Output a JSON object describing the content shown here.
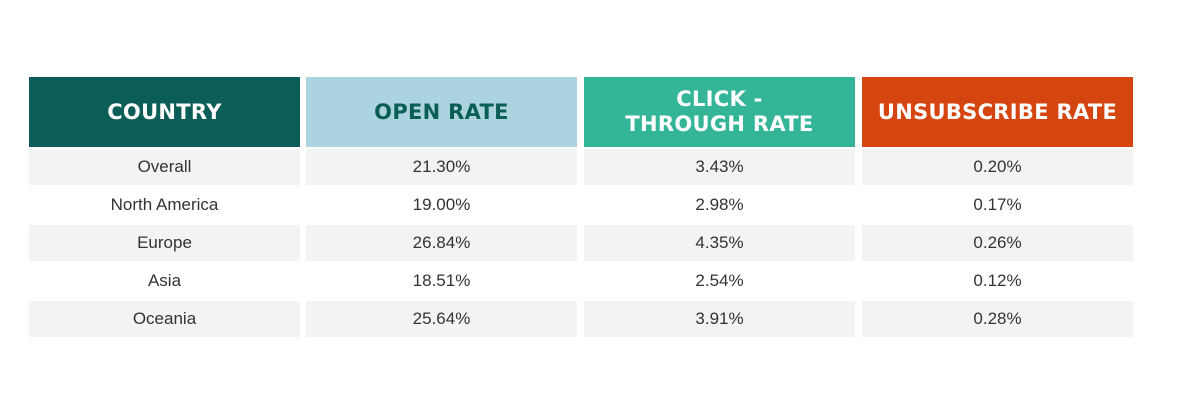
{
  "chart_data": {
    "type": "table",
    "columns": [
      {
        "label": "COUNTRY",
        "bg": "#0b5e57",
        "fg": "#ffffff"
      },
      {
        "label": "OPEN RATE",
        "bg": "#abd4e0",
        "fg": "#0b5e57"
      },
      {
        "label": "CLICK -\nTHROUGH RATE",
        "bg": "#34b597",
        "fg": "#ffffff"
      },
      {
        "label": "UNSUBSCRIBE RATE",
        "bg": "#d5450f",
        "fg": "#ffffff"
      }
    ],
    "rows": [
      [
        "Overall",
        "21.30%",
        "3.43%",
        "0.20%"
      ],
      [
        "North America",
        "19.00%",
        "2.98%",
        "0.17%"
      ],
      [
        "Europe",
        "26.84%",
        "4.35%",
        "0.26%"
      ],
      [
        "Asia",
        "18.51%",
        "2.54%",
        "0.12%"
      ],
      [
        "Oceania",
        "25.64%",
        "3.91%",
        "0.28%"
      ]
    ]
  }
}
